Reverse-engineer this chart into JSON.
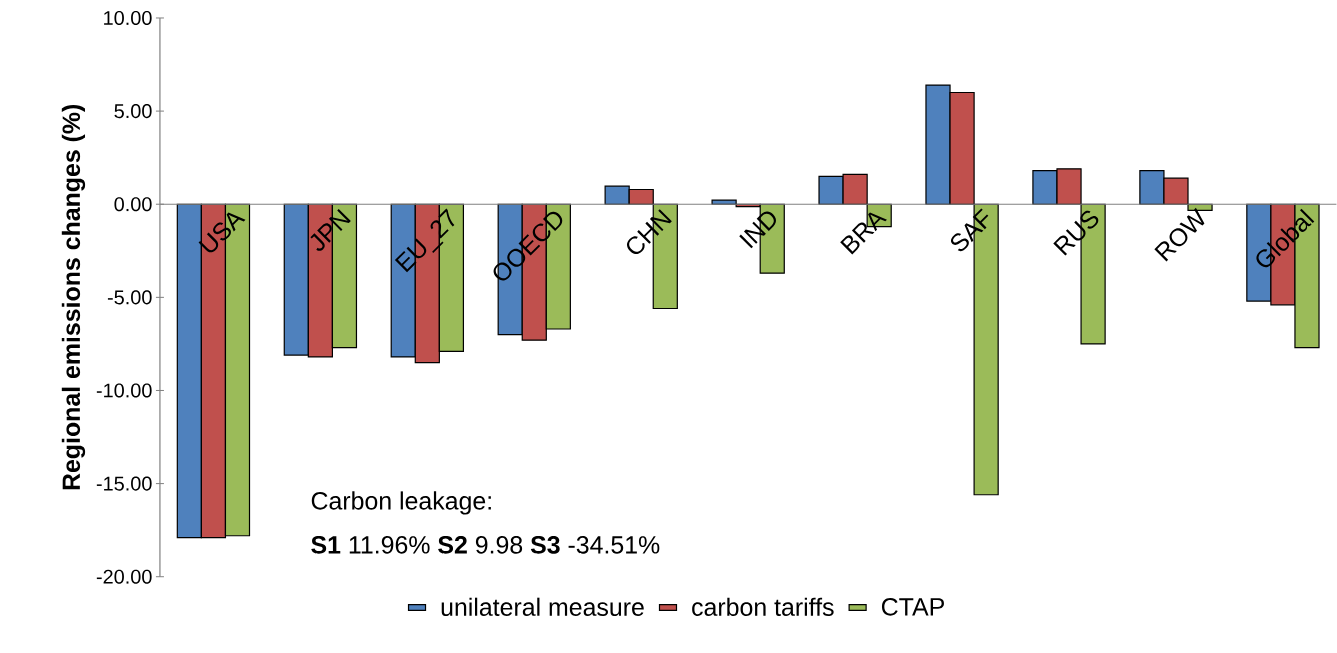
{
  "chart_data": {
    "type": "bar",
    "ylabel": "Regional emissions changes (%)",
    "categories": [
      "USA",
      "JPN",
      "EU_27",
      "OOECD",
      "CHN",
      "IND",
      "BRA",
      "SAF",
      "RUS",
      "ROW",
      "Global"
    ],
    "series": [
      {
        "name": "unilateral measure",
        "color": "#4f81bd",
        "values": [
          -17.9,
          -8.1,
          -8.2,
          -7.0,
          0.97,
          0.22,
          1.5,
          6.4,
          1.8,
          1.8,
          -5.2
        ]
      },
      {
        "name": "carbon tariffs",
        "color": "#c0504d",
        "values": [
          -17.9,
          -8.2,
          -8.5,
          -7.3,
          0.79,
          -0.13,
          1.6,
          6.0,
          1.9,
          1.4,
          -5.4
        ]
      },
      {
        "name": "CTAP",
        "color": "#9bbb59",
        "values": [
          -17.8,
          -7.7,
          -7.9,
          -6.7,
          -5.6,
          -3.7,
          -1.2,
          -15.6,
          -7.5,
          -0.33,
          -7.7
        ]
      }
    ],
    "ylim": [
      -20,
      10
    ],
    "yticks": [
      {
        "value": -20,
        "label": "-20.00"
      },
      {
        "value": -15,
        "label": "-15.00"
      },
      {
        "value": -10,
        "label": "-10.00"
      },
      {
        "value": -5,
        "label": "-5.00"
      },
      {
        "value": 0,
        "label": "0.00"
      },
      {
        "value": 5,
        "label": "5.00"
      },
      {
        "value": 10,
        "label": "10.00"
      }
    ],
    "annotations": [
      "Carbon leakage:",
      "**S1** 11.96% **S2**  9.98  **S3** -34.51%"
    ],
    "grid": false,
    "legend": "bottom"
  }
}
